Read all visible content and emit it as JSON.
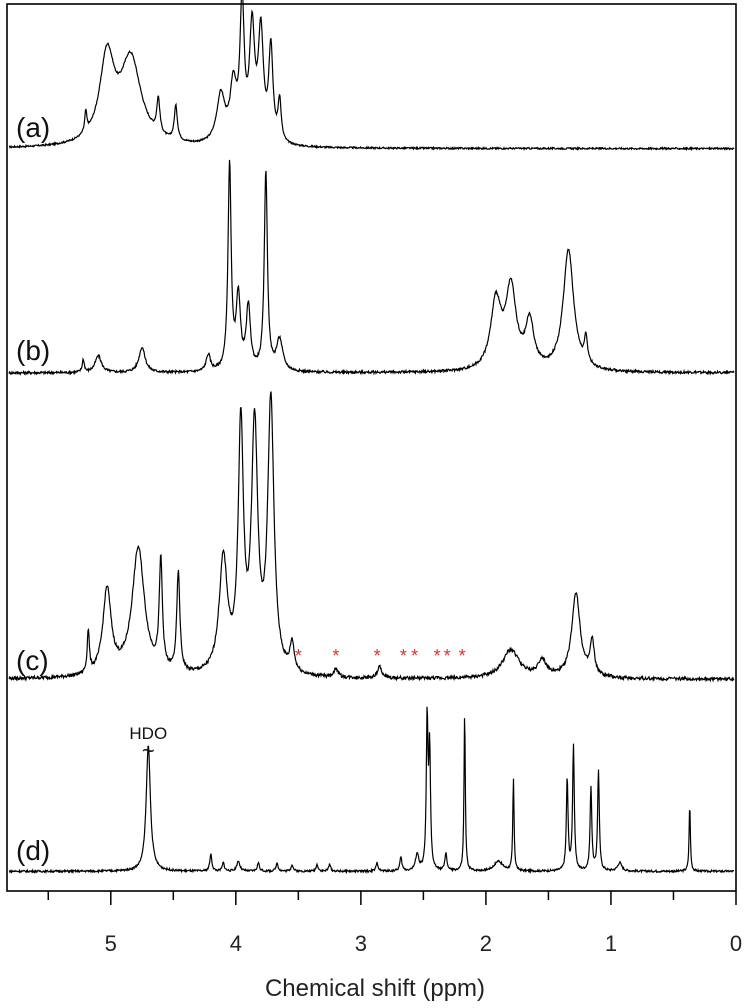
{
  "chart_data": {
    "type": "line",
    "title": "",
    "xlabel": "Chemical shift (ppm)",
    "ylabel": "",
    "xlim": [
      5.83,
      0
    ],
    "x_reversed": true,
    "xticks": [
      "5",
      "4",
      "3",
      "2",
      "1",
      "0"
    ],
    "grid": false,
    "legend": "none",
    "colors": {
      "trace": "#000000",
      "frame": "#000000",
      "asterisk": "#e03030"
    },
    "series": [
      {
        "name": "(a)",
        "label": "(a)",
        "baseline": 0.01,
        "peaks": [
          {
            "x": 5.2,
            "h": 0.15,
            "w": 0.01
          },
          {
            "x": 5.03,
            "h": 0.62,
            "w": 0.07
          },
          {
            "x": 4.84,
            "h": 0.62,
            "w": 0.1
          },
          {
            "x": 4.62,
            "h": 0.25,
            "w": 0.015
          },
          {
            "x": 4.48,
            "h": 0.25,
            "w": 0.015
          },
          {
            "x": 4.12,
            "h": 0.35,
            "w": 0.04
          },
          {
            "x": 4.02,
            "h": 0.4,
            "w": 0.03
          },
          {
            "x": 3.95,
            "h": 0.98,
            "w": 0.02
          },
          {
            "x": 3.87,
            "h": 0.8,
            "w": 0.025
          },
          {
            "x": 3.8,
            "h": 0.78,
            "w": 0.025
          },
          {
            "x": 3.72,
            "h": 0.68,
            "w": 0.02
          },
          {
            "x": 3.65,
            "h": 0.3,
            "w": 0.015
          }
        ]
      },
      {
        "name": "(b)",
        "label": "(b)",
        "baseline": 0.01,
        "peaks": [
          {
            "x": 5.22,
            "h": 0.06,
            "w": 0.01
          },
          {
            "x": 5.1,
            "h": 0.08,
            "w": 0.03
          },
          {
            "x": 4.75,
            "h": 0.12,
            "w": 0.03
          },
          {
            "x": 4.22,
            "h": 0.08,
            "w": 0.02
          },
          {
            "x": 4.05,
            "h": 0.98,
            "w": 0.015
          },
          {
            "x": 3.98,
            "h": 0.35,
            "w": 0.02
          },
          {
            "x": 3.9,
            "h": 0.3,
            "w": 0.02
          },
          {
            "x": 3.76,
            "h": 0.95,
            "w": 0.015
          },
          {
            "x": 3.65,
            "h": 0.15,
            "w": 0.03
          },
          {
            "x": 1.92,
            "h": 0.32,
            "w": 0.05
          },
          {
            "x": 1.8,
            "h": 0.38,
            "w": 0.05
          },
          {
            "x": 1.65,
            "h": 0.22,
            "w": 0.04
          },
          {
            "x": 1.34,
            "h": 0.58,
            "w": 0.05
          },
          {
            "x": 1.2,
            "h": 0.12,
            "w": 0.015
          }
        ]
      },
      {
        "name": "(c)",
        "label": "(c)",
        "baseline": 0.01,
        "peaks": [
          {
            "x": 5.18,
            "h": 0.15,
            "w": 0.01
          },
          {
            "x": 5.03,
            "h": 0.3,
            "w": 0.04
          },
          {
            "x": 4.78,
            "h": 0.45,
            "w": 0.06
          },
          {
            "x": 4.6,
            "h": 0.38,
            "w": 0.015
          },
          {
            "x": 4.46,
            "h": 0.35,
            "w": 0.015
          },
          {
            "x": 4.1,
            "h": 0.4,
            "w": 0.04
          },
          {
            "x": 3.96,
            "h": 0.85,
            "w": 0.025
          },
          {
            "x": 3.85,
            "h": 0.85,
            "w": 0.03
          },
          {
            "x": 3.72,
            "h": 0.95,
            "w": 0.03
          },
          {
            "x": 3.55,
            "h": 0.1,
            "w": 0.02
          },
          {
            "x": 3.2,
            "h": 0.03,
            "w": 0.02
          },
          {
            "x": 2.85,
            "h": 0.04,
            "w": 0.02
          },
          {
            "x": 1.8,
            "h": 0.1,
            "w": 0.08
          },
          {
            "x": 1.55,
            "h": 0.06,
            "w": 0.04
          },
          {
            "x": 1.28,
            "h": 0.3,
            "w": 0.04
          },
          {
            "x": 1.15,
            "h": 0.12,
            "w": 0.02
          }
        ],
        "asterisk_x": [
          3.5,
          3.2,
          2.87,
          2.66,
          2.57,
          2.39,
          2.31,
          2.19
        ]
      },
      {
        "name": "(d)",
        "label": "(d)",
        "baseline": 0.01,
        "annotation": {
          "text": "HDO",
          "tilde": "~",
          "x": 4.7
        },
        "peaks": [
          {
            "x": 4.7,
            "h": 0.75,
            "w": 0.02
          },
          {
            "x": 4.2,
            "h": 0.1,
            "w": 0.01
          },
          {
            "x": 4.1,
            "h": 0.05,
            "w": 0.01
          },
          {
            "x": 3.98,
            "h": 0.06,
            "w": 0.015
          },
          {
            "x": 3.82,
            "h": 0.05,
            "w": 0.01
          },
          {
            "x": 3.67,
            "h": 0.05,
            "w": 0.01
          },
          {
            "x": 3.55,
            "h": 0.04,
            "w": 0.01
          },
          {
            "x": 3.35,
            "h": 0.04,
            "w": 0.01
          },
          {
            "x": 3.25,
            "h": 0.04,
            "w": 0.01
          },
          {
            "x": 2.87,
            "h": 0.05,
            "w": 0.01
          },
          {
            "x": 2.68,
            "h": 0.08,
            "w": 0.01
          },
          {
            "x": 2.55,
            "h": 0.1,
            "w": 0.015
          },
          {
            "x": 2.47,
            "h": 0.9,
            "w": 0.008
          },
          {
            "x": 2.45,
            "h": 0.7,
            "w": 0.008
          },
          {
            "x": 2.32,
            "h": 0.1,
            "w": 0.01
          },
          {
            "x": 2.17,
            "h": 0.95,
            "w": 0.006
          },
          {
            "x": 1.9,
            "h": 0.06,
            "w": 0.04
          },
          {
            "x": 1.78,
            "h": 0.55,
            "w": 0.006
          },
          {
            "x": 1.35,
            "h": 0.55,
            "w": 0.008
          },
          {
            "x": 1.3,
            "h": 0.75,
            "w": 0.008
          },
          {
            "x": 1.16,
            "h": 0.5,
            "w": 0.008
          },
          {
            "x": 1.1,
            "h": 0.6,
            "w": 0.008
          },
          {
            "x": 0.93,
            "h": 0.05,
            "w": 0.02
          },
          {
            "x": 0.37,
            "h": 0.4,
            "w": 0.006
          }
        ]
      }
    ]
  }
}
